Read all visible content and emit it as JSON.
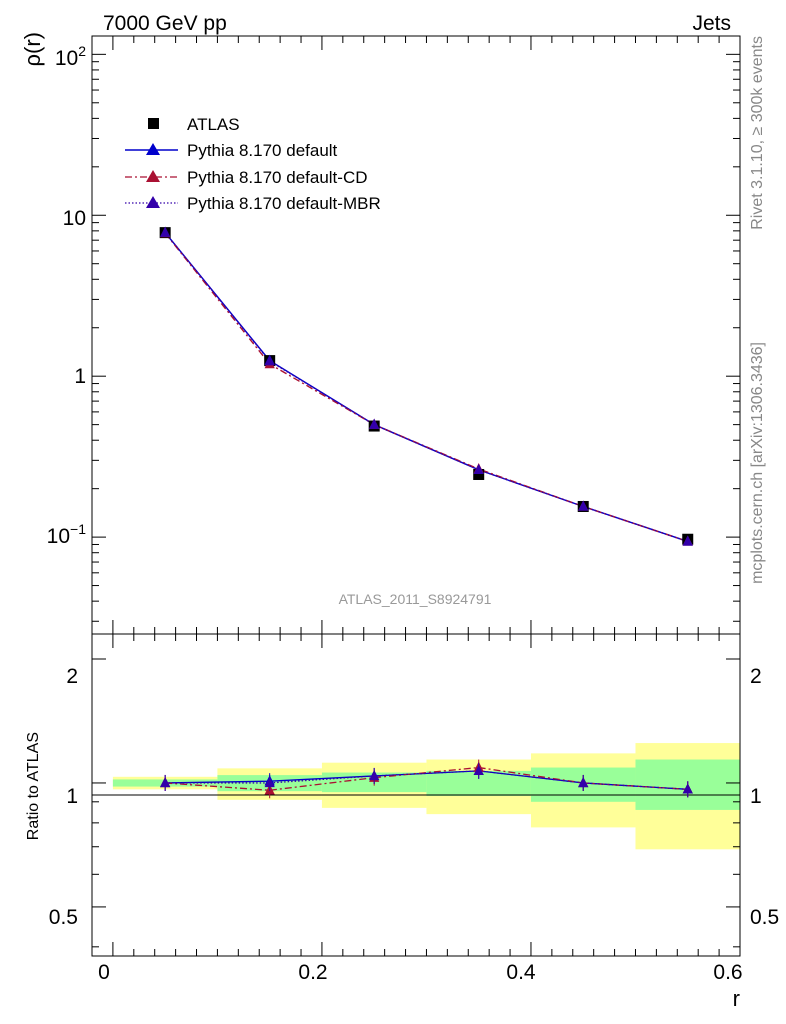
{
  "header": {
    "energy_label": "7000 GeV pp",
    "process_label": "Jets",
    "analysis_label": "ATLAS_2011_S8924791",
    "side_label_top": "Rivet 3.1.10, ≥ 300k events",
    "side_label_bottom": "mcplots.cern.ch [arXiv:1306.3436]"
  },
  "chart_data": [
    {
      "type": "line",
      "panel": "main",
      "ylabel": "ρ(r)",
      "yscale": "log",
      "ylim": [
        0.025,
        130
      ],
      "xlim": [
        -0.02,
        0.6
      ],
      "ytick_labels": [
        "10",
        "1"
      ],
      "x": [
        0.05,
        0.15,
        0.25,
        0.35,
        0.45,
        0.55
      ],
      "series": [
        {
          "name": "ATLAS",
          "marker": "square",
          "color": "#000000",
          "values": [
            7.8,
            1.25,
            0.49,
            0.245,
            0.155,
            0.097
          ]
        },
        {
          "name": "Pythia 8.170 default",
          "marker": "triangle",
          "line": "solid",
          "color": "#0000cc",
          "values": [
            7.8,
            1.25,
            0.5,
            0.262,
            0.155,
            0.094
          ]
        },
        {
          "name": "Pythia 8.170 default-CD",
          "marker": "triangle",
          "line": "dashdot",
          "color": "#aa1133",
          "values": [
            7.75,
            1.19,
            0.5,
            0.265,
            0.155,
            0.094
          ]
        },
        {
          "name": "Pythia 8.170 default-MBR",
          "marker": "triangle",
          "line": "dotted",
          "color": "#3300aa",
          "values": [
            7.8,
            1.24,
            0.5,
            0.262,
            0.155,
            0.094
          ]
        }
      ]
    },
    {
      "type": "line",
      "panel": "ratio",
      "ylabel": "Ratio to ATLAS",
      "xlabel": "r",
      "ylim": [
        0.38,
        2.3
      ],
      "xlim": [
        -0.02,
        0.6
      ],
      "ytick_labels": [
        "0.5",
        "1",
        "2"
      ],
      "xtick_labels": [
        "0",
        "0.2",
        "0.4",
        "0.6"
      ],
      "xticks": [
        0,
        0.2,
        0.4,
        0.6
      ],
      "yticks": [
        0.5,
        1,
        2
      ],
      "bins": [
        [
          0.0,
          0.1
        ],
        [
          0.1,
          0.2
        ],
        [
          0.2,
          0.3
        ],
        [
          0.3,
          0.4
        ],
        [
          0.4,
          0.5
        ],
        [
          0.5,
          0.6
        ]
      ],
      "band_stat": [
        [
          0.98,
          1.02
        ],
        [
          0.955,
          1.045
        ],
        [
          0.95,
          1.06
        ],
        [
          0.93,
          1.07
        ],
        [
          0.9,
          1.09
        ],
        [
          0.86,
          1.14
        ]
      ],
      "band_total": [
        [
          0.965,
          1.035
        ],
        [
          0.91,
          1.085
        ],
        [
          0.87,
          1.12
        ],
        [
          0.84,
          1.14
        ],
        [
          0.78,
          1.18
        ],
        [
          0.69,
          1.25
        ]
      ],
      "band_colors": {
        "stat": "#99ff99",
        "total": "#ffff99"
      },
      "x": [
        0.05,
        0.15,
        0.25,
        0.35,
        0.45,
        0.55
      ],
      "series": [
        {
          "name": "Pythia 8.170 default",
          "color": "#0000cc",
          "values": [
            1.0,
            1.01,
            1.04,
            1.07,
            1.0,
            0.965
          ]
        },
        {
          "name": "Pythia 8.170 default-CD",
          "color": "#aa1133",
          "values": [
            1.0,
            0.96,
            1.03,
            1.09,
            1.0,
            0.965
          ]
        },
        {
          "name": "Pythia 8.170 default-MBR",
          "color": "#3300aa",
          "values": [
            1.0,
            1.0,
            1.04,
            1.07,
            1.0,
            0.965
          ]
        }
      ]
    }
  ]
}
